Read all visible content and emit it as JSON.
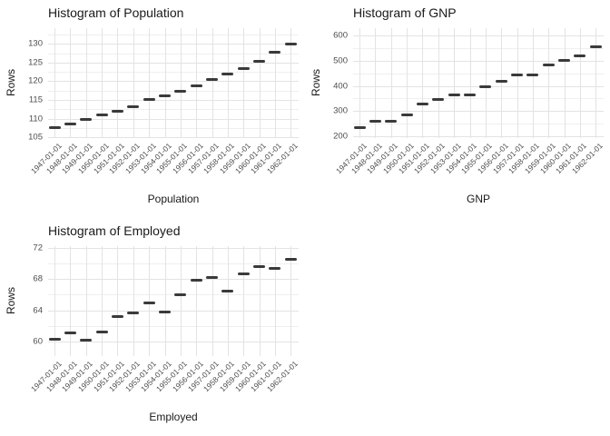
{
  "colors": {
    "background": "#ffffff",
    "grid_major": "#e3e3e3",
    "grid_minor": "#efefef",
    "mark": "#3a3a3a",
    "tick_label": "#4d4d4d",
    "text": "#1a1a1a"
  },
  "chart_data": [
    {
      "type": "scatter",
      "mark_style": "horizontal-dash",
      "title": "Histogram of Population",
      "xlabel": "Population",
      "ylabel": "Rows",
      "categories": [
        "1947-01-01",
        "1948-01-01",
        "1949-01-01",
        "1950-01-01",
        "1951-01-01",
        "1952-01-01",
        "1953-01-01",
        "1954-01-01",
        "1955-01-01",
        "1956-01-01",
        "1957-01-01",
        "1958-01-01",
        "1959-01-01",
        "1960-01-01",
        "1961-01-01",
        "1962-01-01"
      ],
      "values": [
        107.608,
        108.632,
        109.773,
        110.929,
        112.075,
        113.27,
        115.094,
        116.219,
        117.388,
        118.734,
        120.445,
        121.95,
        123.366,
        125.368,
        127.852,
        130.081
      ],
      "y_ticks": [
        105,
        110,
        115,
        120,
        125,
        130
      ],
      "y_minor_gridlines": [
        107.5,
        112.5,
        117.5,
        122.5,
        127.5,
        132.5
      ],
      "ylim": [
        104.8,
        134.2
      ],
      "grid": true,
      "legend": false
    },
    {
      "type": "scatter",
      "mark_style": "horizontal-dash",
      "title": "Histogram of GNP",
      "xlabel": "GNP",
      "ylabel": "Rows",
      "categories": [
        "1947-01-01",
        "1948-01-01",
        "1949-01-01",
        "1950-01-01",
        "1951-01-01",
        "1952-01-01",
        "1953-01-01",
        "1954-01-01",
        "1955-01-01",
        "1956-01-01",
        "1957-01-01",
        "1958-01-01",
        "1959-01-01",
        "1960-01-01",
        "1961-01-01",
        "1962-01-01"
      ],
      "values": [
        234.289,
        259.426,
        258.054,
        284.599,
        328.975,
        346.999,
        365.385,
        363.112,
        397.469,
        419.18,
        442.769,
        444.546,
        482.704,
        502.601,
        518.173,
        554.894
      ],
      "y_ticks": [
        200,
        300,
        400,
        500,
        600
      ],
      "y_minor_gridlines": [
        250,
        350,
        450,
        550
      ],
      "ylim": [
        192.8,
        628.8
      ],
      "grid": true,
      "legend": false
    },
    {
      "type": "scatter",
      "mark_style": "horizontal-dash",
      "title": "Histogram of Employed",
      "xlabel": "Employed",
      "ylabel": "Rows",
      "categories": [
        "1947-01-01",
        "1948-01-01",
        "1949-01-01",
        "1950-01-01",
        "1951-01-01",
        "1952-01-01",
        "1953-01-01",
        "1954-01-01",
        "1955-01-01",
        "1956-01-01",
        "1957-01-01",
        "1958-01-01",
        "1959-01-01",
        "1960-01-01",
        "1961-01-01",
        "1962-01-01"
      ],
      "values": [
        60.323,
        61.122,
        60.171,
        61.187,
        63.221,
        63.639,
        64.989,
        63.761,
        66.019,
        67.857,
        68.169,
        66.513,
        68.655,
        69.564,
        69.331,
        70.551
      ],
      "y_ticks": [
        60,
        64,
        68,
        72
      ],
      "y_minor_gridlines": [
        62,
        66,
        70
      ],
      "ylim": [
        58.1,
        72.24
      ],
      "grid": true,
      "legend": false
    }
  ]
}
